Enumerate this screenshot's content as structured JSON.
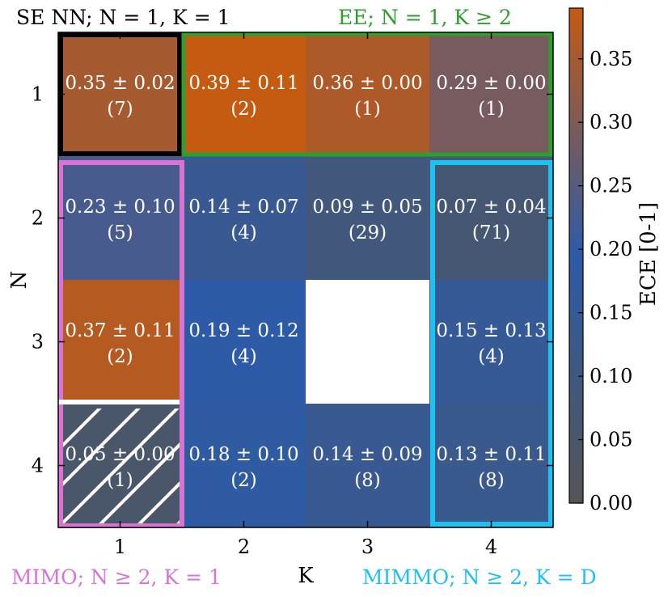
{
  "chart_data": {
    "type": "heatmap",
    "xlabel": "K",
    "ylabel": "N",
    "x_categories": [
      "1",
      "2",
      "3",
      "4"
    ],
    "y_categories": [
      "1",
      "2",
      "3",
      "4"
    ],
    "colorbar": {
      "label": "ECE [0-1]",
      "range": [
        0.0,
        0.39
      ],
      "ticks": [
        "0.00",
        "0.05",
        "0.10",
        "0.15",
        "0.20",
        "0.25",
        "0.30",
        "0.35"
      ],
      "tick_values": [
        0.0,
        0.05,
        0.1,
        0.15,
        0.2,
        0.25,
        0.3,
        0.35
      ],
      "colors": [
        "#555555",
        "#2c5ba9",
        "#c55a11"
      ]
    },
    "cells": [
      {
        "n": 1,
        "k": 1,
        "mean": 0.35,
        "std": 0.02,
        "mean_label": "0.35",
        "std_label": "0.02",
        "count": "(7)"
      },
      {
        "n": 1,
        "k": 2,
        "mean": 0.39,
        "std": 0.11,
        "mean_label": "0.39",
        "std_label": "0.11",
        "count": "(2)"
      },
      {
        "n": 1,
        "k": 3,
        "mean": 0.36,
        "std": 0.0,
        "mean_label": "0.36",
        "std_label": "0.00",
        "count": "(1)"
      },
      {
        "n": 1,
        "k": 4,
        "mean": 0.29,
        "std": 0.0,
        "mean_label": "0.29",
        "std_label": "0.00",
        "count": "(1)"
      },
      {
        "n": 2,
        "k": 1,
        "mean": 0.23,
        "std": 0.1,
        "mean_label": "0.23",
        "std_label": "0.10",
        "count": "(5)"
      },
      {
        "n": 2,
        "k": 2,
        "mean": 0.14,
        "std": 0.07,
        "mean_label": "0.14",
        "std_label": "0.07",
        "count": "(4)"
      },
      {
        "n": 2,
        "k": 3,
        "mean": 0.09,
        "std": 0.05,
        "mean_label": "0.09",
        "std_label": "0.05",
        "count": "(29)"
      },
      {
        "n": 2,
        "k": 4,
        "mean": 0.07,
        "std": 0.04,
        "mean_label": "0.07",
        "std_label": "0.04",
        "count": "(71)"
      },
      {
        "n": 3,
        "k": 1,
        "mean": 0.37,
        "std": 0.11,
        "mean_label": "0.37",
        "std_label": "0.11",
        "count": "(2)"
      },
      {
        "n": 3,
        "k": 2,
        "mean": 0.19,
        "std": 0.12,
        "mean_label": "0.19",
        "std_label": "0.12",
        "count": "(4)"
      },
      {
        "n": 3,
        "k": 4,
        "mean": 0.15,
        "std": 0.13,
        "mean_label": "0.15",
        "std_label": "0.13",
        "count": "(4)"
      },
      {
        "n": 4,
        "k": 1,
        "mean": 0.05,
        "std": 0.0,
        "mean_label": "0.05",
        "std_label": "0.00",
        "count": "(1)",
        "hatched": true
      },
      {
        "n": 4,
        "k": 2,
        "mean": 0.18,
        "std": 0.1,
        "mean_label": "0.18",
        "std_label": "0.10",
        "count": "(2)"
      },
      {
        "n": 4,
        "k": 3,
        "mean": 0.14,
        "std": 0.09,
        "mean_label": "0.14",
        "std_label": "0.09",
        "count": "(8)"
      },
      {
        "n": 4,
        "k": 4,
        "mean": 0.13,
        "std": 0.11,
        "mean_label": "0.13",
        "std_label": "0.11",
        "count": "(8)"
      }
    ],
    "regions": [
      {
        "id": "se-nn",
        "label": "SE NN; N = 1, K = 1",
        "color": "#000000"
      },
      {
        "id": "ee",
        "label": "EE; N = 1, K ≥ 2",
        "color": "#2ca02c"
      },
      {
        "id": "mimo",
        "label": "MIMO; N ≥ 2, K = 1",
        "color": "#d973d4"
      },
      {
        "id": "mimmo",
        "label": "MIMMO; N ≥ 2, K = D",
        "color": "#1cc3f0"
      }
    ]
  }
}
